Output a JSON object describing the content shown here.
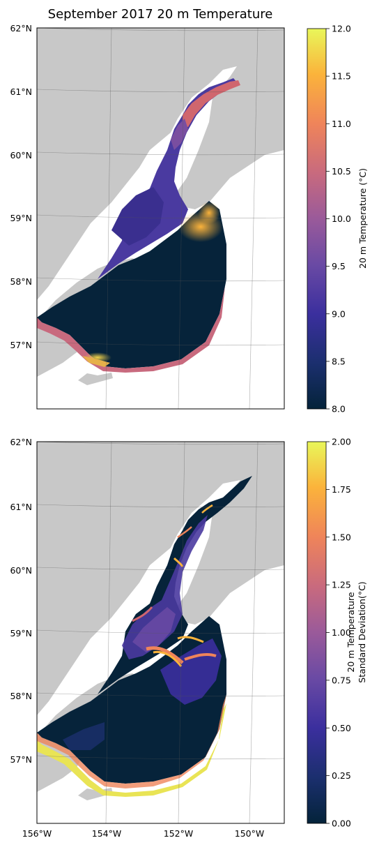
{
  "title": "September 2017 20 m Temperature",
  "chart_data": [
    {
      "type": "heatmap",
      "title": "September 2017 20 m Temperature",
      "x_ticks": [
        "156°W",
        "154°W",
        "152°W",
        "150°W"
      ],
      "y_ticks": [
        "62°N",
        "61°N",
        "60°N",
        "59°N",
        "58°N",
        "57°N"
      ],
      "x_range": [
        -156,
        -149
      ],
      "y_range": [
        56,
        62
      ],
      "colorbar": {
        "label": "20 m Temperature (°C)",
        "range": [
          8.0,
          12.0
        ],
        "ticks": [
          "12.0",
          "11.5",
          "11.0",
          "10.5",
          "10.0",
          "9.5",
          "9.0",
          "8.5",
          "8.0"
        ]
      },
      "grid": true,
      "colors": {
        "land": "#c8c8c8",
        "coast_inland": "#ffffff"
      }
    },
    {
      "type": "heatmap",
      "title": "",
      "x_ticks": [
        "156°W",
        "154°W",
        "152°W",
        "150°W"
      ],
      "y_ticks": [
        "62°N",
        "61°N",
        "60°N",
        "59°N",
        "58°N",
        "57°N"
      ],
      "x_range": [
        -156,
        -149
      ],
      "y_range": [
        56,
        62
      ],
      "colorbar": {
        "label_lines": [
          "20 m Temperature",
          "Standard Deviation(°C)"
        ],
        "range": [
          0.0,
          2.0
        ],
        "ticks": [
          "2.00",
          "1.75",
          "1.50",
          "1.25",
          "1.00",
          "0.75",
          "0.50",
          "0.25",
          "0.00"
        ]
      },
      "grid": true,
      "colors": {
        "land": "#c8c8c8",
        "coast_inland": "#ffffff"
      }
    }
  ]
}
